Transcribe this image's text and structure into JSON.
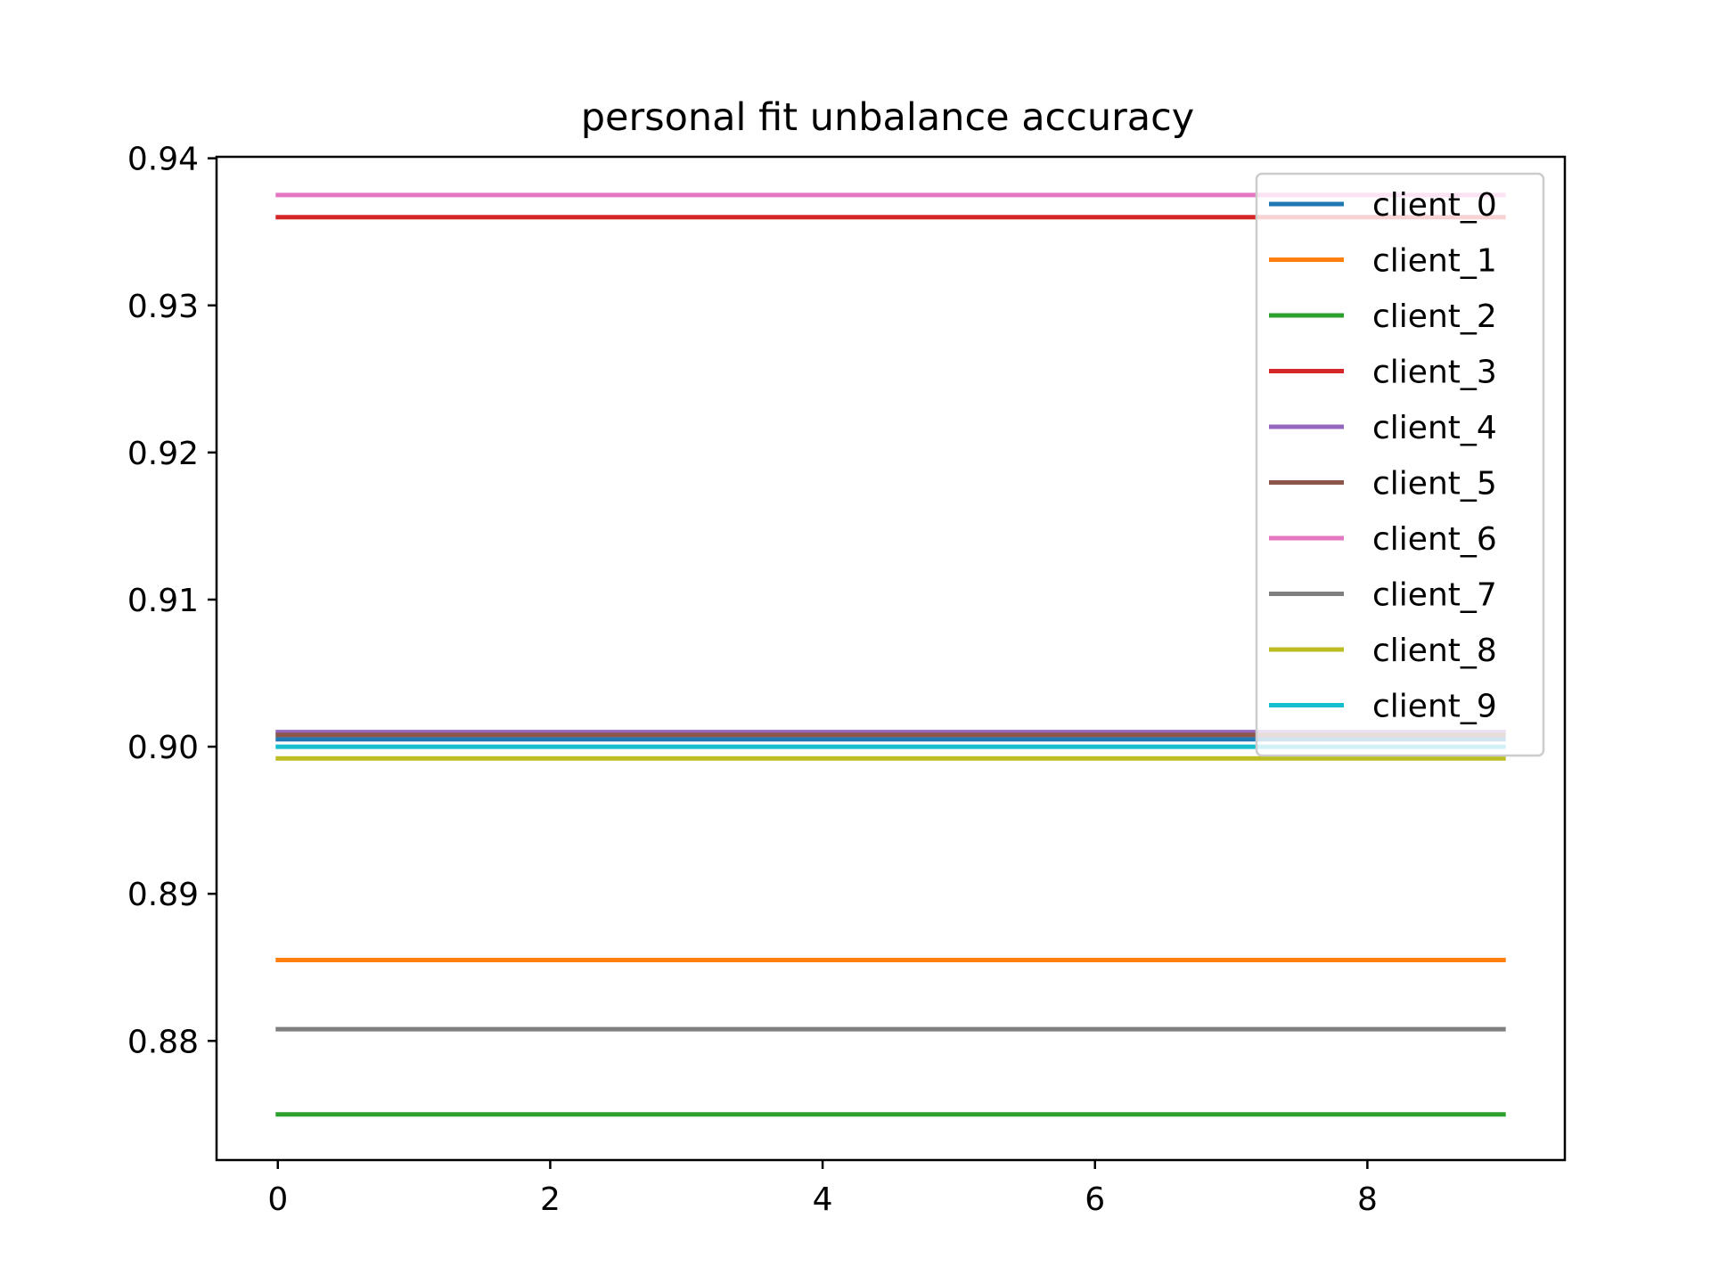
{
  "chart_data": {
    "type": "line",
    "title": "personal fit unbalance accuracy",
    "xlabel": "",
    "ylabel": "",
    "x": [
      0,
      1,
      2,
      3,
      4,
      5,
      6,
      7,
      8,
      9
    ],
    "xlim": [
      -0.45,
      9.45
    ],
    "ylim": [
      0.8719,
      0.9401
    ],
    "xticks": [
      0,
      2,
      4,
      6,
      8
    ],
    "xtick_labels": [
      "0",
      "2",
      "4",
      "6",
      "8"
    ],
    "yticks": [
      0.88,
      0.89,
      0.9,
      0.91,
      0.92,
      0.93,
      0.94
    ],
    "ytick_labels": [
      "0.88",
      "0.89",
      "0.90",
      "0.91",
      "0.92",
      "0.93",
      "0.94"
    ],
    "grid": false,
    "legend_position": "top-right",
    "series": [
      {
        "name": "client_0",
        "color": "#1f77b4",
        "values": [
          0.9005,
          0.9005,
          0.9005,
          0.9005,
          0.9005,
          0.9005,
          0.9005,
          0.9005,
          0.9005,
          0.9005
        ]
      },
      {
        "name": "client_1",
        "color": "#ff7f0e",
        "values": [
          0.8855,
          0.8855,
          0.8855,
          0.8855,
          0.8855,
          0.8855,
          0.8855,
          0.8855,
          0.8855,
          0.8855
        ]
      },
      {
        "name": "client_2",
        "color": "#2ca02c",
        "values": [
          0.875,
          0.875,
          0.875,
          0.875,
          0.875,
          0.875,
          0.875,
          0.875,
          0.875,
          0.875
        ]
      },
      {
        "name": "client_3",
        "color": "#d62728",
        "values": [
          0.936,
          0.936,
          0.936,
          0.936,
          0.936,
          0.936,
          0.936,
          0.936,
          0.936,
          0.936
        ]
      },
      {
        "name": "client_4",
        "color": "#9467bd",
        "values": [
          0.901,
          0.901,
          0.901,
          0.901,
          0.901,
          0.901,
          0.901,
          0.901,
          0.901,
          0.901
        ]
      },
      {
        "name": "client_5",
        "color": "#8c564b",
        "values": [
          0.9008,
          0.9008,
          0.9008,
          0.9008,
          0.9008,
          0.9008,
          0.9008,
          0.9008,
          0.9008,
          0.9008
        ]
      },
      {
        "name": "client_6",
        "color": "#e377c2",
        "values": [
          0.9375,
          0.9375,
          0.9375,
          0.9375,
          0.9375,
          0.9375,
          0.9375,
          0.9375,
          0.9375,
          0.9375
        ]
      },
      {
        "name": "client_7",
        "color": "#7f7f7f",
        "values": [
          0.8808,
          0.8808,
          0.8808,
          0.8808,
          0.8808,
          0.8808,
          0.8808,
          0.8808,
          0.8808,
          0.8808
        ]
      },
      {
        "name": "client_8",
        "color": "#bcbd22",
        "values": [
          0.8992,
          0.8992,
          0.8992,
          0.8992,
          0.8992,
          0.8992,
          0.8992,
          0.8992,
          0.8992,
          0.8992
        ]
      },
      {
        "name": "client_9",
        "color": "#17becf",
        "values": [
          0.9,
          0.9,
          0.9,
          0.9,
          0.9,
          0.9,
          0.9,
          0.9,
          0.9,
          0.9
        ]
      }
    ]
  }
}
